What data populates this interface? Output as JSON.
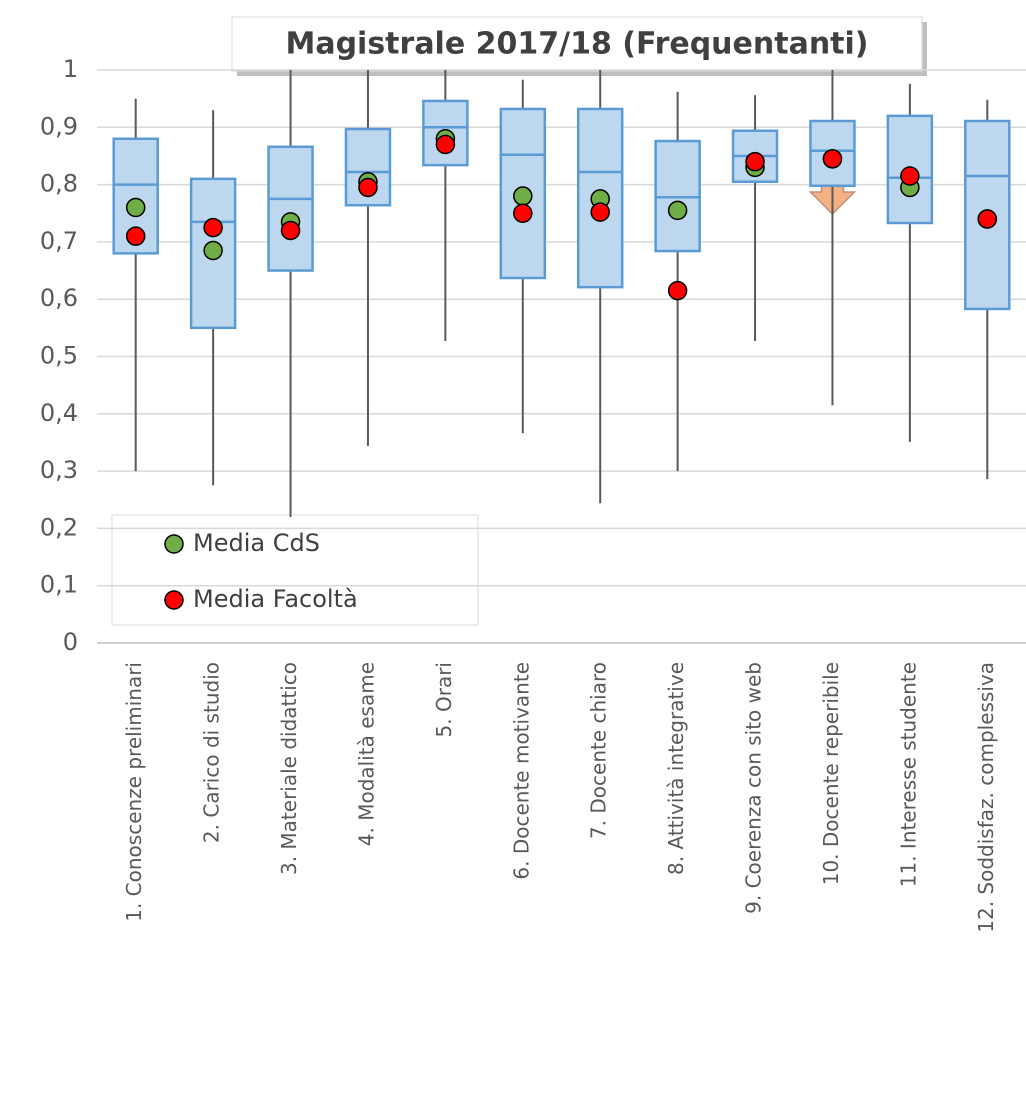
{
  "chart_data": {
    "type": "box",
    "title": "Magistrale 2017/18 (Frequentanti)",
    "categories": [
      "1. Conoscenze preliminari",
      "2. Carico di studio",
      "3. Materiale didattico",
      "4. Modalità esame",
      "5. Orari",
      "6. Docente motivante",
      "7. Docente chiaro",
      "8. Attività integrative",
      "9. Coerenza con sito web",
      "10. Docente reperibile",
      "11. Interesse studente",
      "12. Soddisfaz. complessiva"
    ],
    "box": {
      "fill": "#bdd7ee",
      "stroke": "#5b9bd5",
      "whisker_color": "#595959",
      "low": [
        0.3,
        0.275,
        0.22,
        0.344,
        0.527,
        0.366,
        0.244,
        0.3,
        0.527,
        0.415,
        0.351,
        0.286
      ],
      "q1": [
        0.68,
        0.55,
        0.65,
        0.764,
        0.834,
        0.637,
        0.621,
        0.684,
        0.805,
        0.798,
        0.733,
        0.583
      ],
      "median": [
        0.8,
        0.735,
        0.775,
        0.822,
        0.9,
        0.852,
        0.822,
        0.778,
        0.85,
        0.859,
        0.812,
        0.815
      ],
      "q3": [
        0.88,
        0.81,
        0.866,
        0.897,
        0.946,
        0.932,
        0.932,
        0.876,
        0.894,
        0.911,
        0.92,
        0.911
      ],
      "high": [
        0.95,
        0.93,
        1.0,
        1.0,
        1.0,
        0.983,
        1.0,
        0.962,
        0.956,
        1.0,
        0.976,
        0.948
      ]
    },
    "series": [
      {
        "name": "Media CdS",
        "color": "#70ad47",
        "values": [
          0.76,
          0.685,
          0.735,
          0.805,
          0.88,
          0.78,
          0.775,
          0.755,
          0.83,
          0.845,
          0.795,
          0.74
        ]
      },
      {
        "name": "Media Facoltà",
        "color": "#ff0000",
        "values": [
          0.71,
          0.725,
          0.72,
          0.795,
          0.87,
          0.75,
          0.752,
          0.615,
          0.84,
          0.845,
          0.815,
          0.74
        ]
      }
    ],
    "ylim": [
      0,
      1
    ],
    "yticks": [
      0,
      {
        "value": 0.1,
        "label": "0,1"
      },
      {
        "value": 0.2,
        "label": "0,2"
      },
      {
        "value": 0.3,
        "label": "0,3"
      },
      {
        "value": 0.4,
        "label": "0,4"
      },
      {
        "value": 0.5,
        "label": "0,5"
      },
      {
        "value": 0.6,
        "label": "0,6"
      },
      {
        "value": 0.7,
        "label": "0,7"
      },
      {
        "value": 0.8,
        "label": "0,8"
      },
      {
        "value": 0.9,
        "label": "0,9"
      },
      1
    ],
    "grid": true,
    "legend": "bottom-left"
  }
}
